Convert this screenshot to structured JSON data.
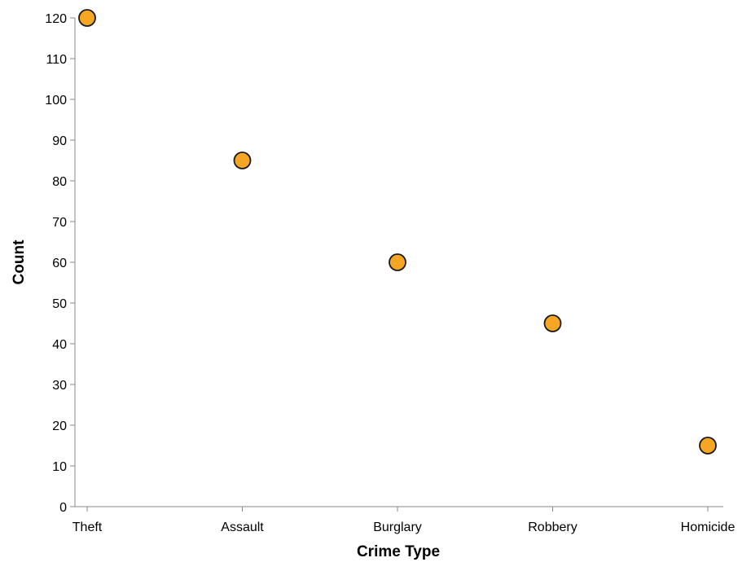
{
  "chart_data": {
    "type": "scatter",
    "title": "",
    "xlabel": "Crime Type",
    "ylabel": "Count",
    "categories": [
      "Theft",
      "Assault",
      "Burglary",
      "Robbery",
      "Homicide"
    ],
    "values": [
      120,
      85,
      60,
      45,
      15
    ],
    "ylim": [
      0,
      120
    ],
    "yticks": [
      0,
      10,
      20,
      30,
      40,
      50,
      60,
      70,
      80,
      90,
      100,
      110,
      120
    ],
    "grid": false,
    "legend": "none",
    "colors": {
      "marker_fill": "#f5a623",
      "marker_stroke": "#1a1a1a",
      "axis": "#888888"
    }
  }
}
